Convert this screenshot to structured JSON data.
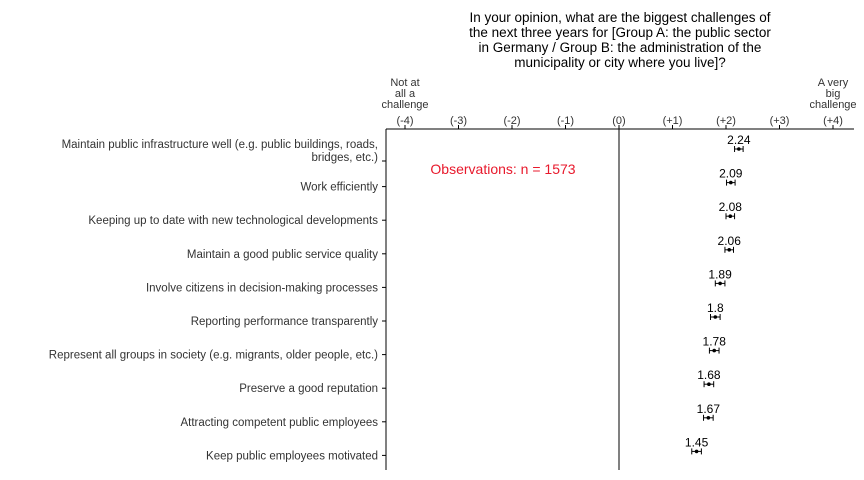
{
  "chart_data": {
    "type": "dot",
    "title": [
      "In your opinion, what are the biggest challenges of",
      "the next three years for [Group A: the public sector",
      "in Germany / Group B: the administration of the",
      "municipality or city where you live]?"
    ],
    "xlim": [
      -4,
      4
    ],
    "x_ticks": [
      -4,
      -3,
      -2,
      -1,
      0,
      1,
      2,
      3,
      4
    ],
    "x_tick_labels": [
      "(-4)",
      "(-3)",
      "(-2)",
      "(-1)",
      "(0)",
      "(+1)",
      "(+2)",
      "(+3)",
      "(+4)"
    ],
    "x_end_labels": {
      "left": [
        "Not at",
        "all a",
        "challenge"
      ],
      "right": [
        "A very",
        "big",
        "challenge"
      ]
    },
    "annotation": "Observations: n = 1573",
    "categories": [
      [
        "Maintain public infrastructure well (e.g. public buildings, roads,",
        "bridges, etc.)"
      ],
      [
        "Work efficiently"
      ],
      [
        "Keeping up to date with new technological developments"
      ],
      [
        "Maintain a good public service quality"
      ],
      [
        "Involve citizens in decision-making processes"
      ],
      [
        "Reporting performance transparently"
      ],
      [
        "Represent all groups in society (e.g. migrants, older people, etc.)"
      ],
      [
        "Preserve a good reputation"
      ],
      [
        "Attracting competent public employees"
      ],
      [
        "Keep public employees motivated"
      ]
    ],
    "values": [
      2.24,
      2.09,
      2.08,
      2.06,
      1.89,
      1.8,
      1.78,
      1.68,
      1.67,
      1.45
    ],
    "value_labels": [
      "2.24",
      "2.09",
      "2.08",
      "2.06",
      "1.89",
      "1.8",
      "1.78",
      "1.68",
      "1.67",
      "1.45"
    ],
    "ci_lower": [
      2.16,
      2.01,
      2.0,
      1.98,
      1.8,
      1.71,
      1.69,
      1.59,
      1.58,
      1.36
    ],
    "ci_upper": [
      2.32,
      2.17,
      2.16,
      2.14,
      1.98,
      1.89,
      1.87,
      1.77,
      1.76,
      1.54
    ],
    "colors": {
      "annotation": "#e8192c",
      "axis": "#000000",
      "text": "#333333"
    }
  }
}
